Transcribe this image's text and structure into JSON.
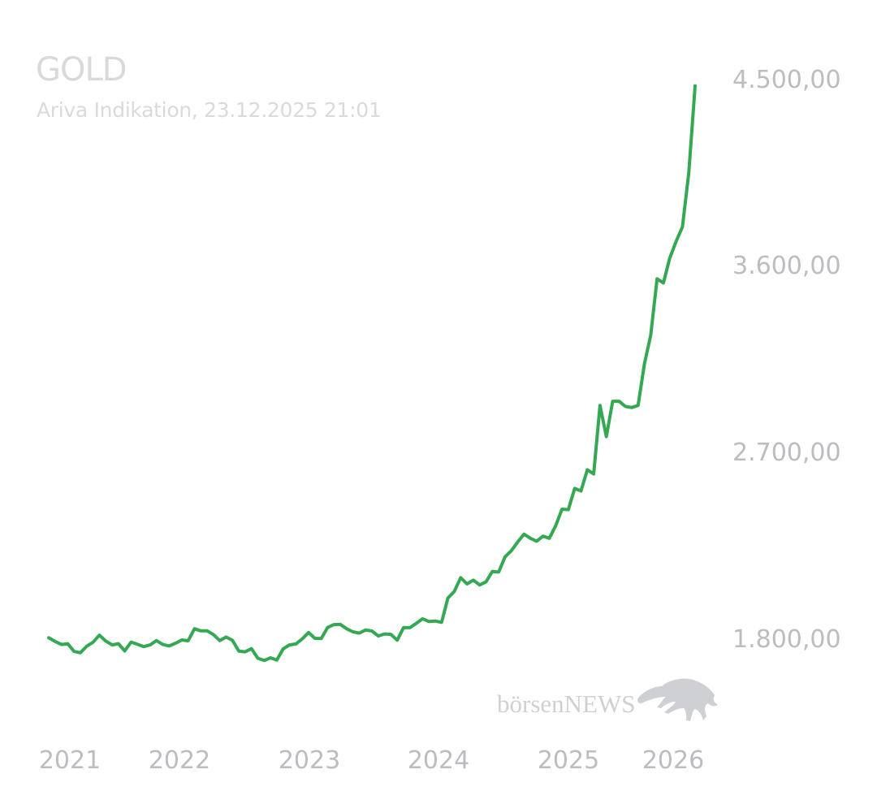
{
  "chart": {
    "title": "GOLD",
    "subtitle": "Ariva Indikation, 23.12.2025 21:01"
  },
  "watermark": {
    "brand": "börsenNEWS",
    "icon": "bull-icon"
  },
  "chart_data": {
    "type": "line",
    "series": [
      {
        "values": [
          1810,
          1793,
          1778,
          1782,
          1745,
          1738,
          1770,
          1789,
          1823,
          1795,
          1776,
          1782,
          1747,
          1790,
          1779,
          1768,
          1776,
          1797,
          1778,
          1771,
          1784,
          1800,
          1796,
          1854,
          1844,
          1844,
          1826,
          1797,
          1814,
          1798,
          1746,
          1743,
          1758,
          1712,
          1701,
          1714,
          1703,
          1757,
          1776,
          1781,
          1805,
          1836,
          1808,
          1807,
          1860,
          1874,
          1875,
          1854,
          1839,
          1833,
          1848,
          1843,
          1819,
          1829,
          1827,
          1799,
          1860,
          1859,
          1880,
          1902,
          1889,
          1891,
          1885,
          2002,
          2034,
          2100,
          2070,
          2088,
          2065,
          2080,
          2130,
          2127,
          2200,
          2230,
          2272,
          2310,
          2290,
          2276,
          2300,
          2290,
          2350,
          2430,
          2428,
          2530,
          2518,
          2620,
          2600,
          2930,
          2780,
          2950,
          2950,
          2925,
          2920,
          2930,
          3130,
          3270,
          3540,
          3520,
          3640,
          3720,
          3790,
          4050,
          4470
        ],
        "color": "#34a853"
      }
    ],
    "x_axis_labels": [
      "2021",
      "2022",
      "2023",
      "2024",
      "2025",
      "2026"
    ],
    "y_axis_labels": [
      "4.500,00",
      "3.600,00",
      "2.700,00",
      "1.800,00"
    ],
    "y_tick_values": [
      4500,
      3600,
      2700,
      1800
    ],
    "ylim": [
      1500,
      4520
    ],
    "x_range_years": [
      2020.92,
      2025.98
    ],
    "grid": false,
    "legend": "none"
  }
}
